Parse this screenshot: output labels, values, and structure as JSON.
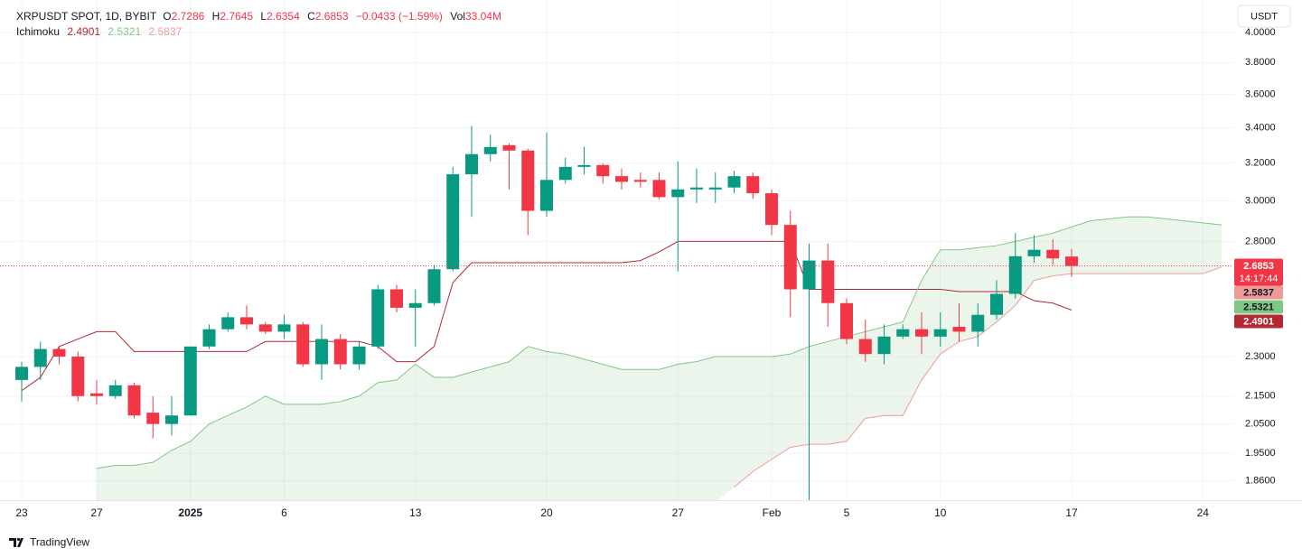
{
  "chart_data": {
    "type": "candlestick",
    "title": "XRPUSDT SPOT, 1D, BYBIT",
    "categories": [
      "23",
      null,
      null,
      null,
      "27",
      null,
      null,
      null,
      null,
      "2025",
      null,
      null,
      null,
      null,
      "6",
      null,
      null,
      null,
      null,
      null,
      null,
      "13",
      null,
      null,
      null,
      null,
      null,
      null,
      "20",
      null,
      null,
      null,
      null,
      null,
      null,
      "27",
      null,
      null,
      null,
      null,
      "Feb",
      null,
      null,
      null,
      "5",
      null,
      null,
      null,
      null,
      "10",
      null,
      null,
      null,
      null,
      null,
      null,
      "17",
      null,
      null,
      null,
      null,
      null,
      null,
      "24",
      null
    ],
    "open": [
      2.21,
      2.26,
      2.33,
      2.3,
      2.16,
      2.15,
      2.19,
      2.09,
      2.05,
      2.08,
      2.34,
      2.41,
      2.46,
      2.43,
      2.4,
      2.43,
      2.27,
      2.37,
      2.27,
      2.34,
      2.58,
      2.5,
      2.52,
      2.67,
      3.14,
      3.25,
      3.3,
      3.27,
      2.95,
      3.11,
      3.18,
      3.19,
      3.13,
      3.11,
      3.11,
      3.02,
      3.06,
      3.06,
      3.07,
      3.13,
      3.04,
      2.88,
      2.58,
      2.71,
      2.52,
      2.37,
      2.31,
      2.38,
      2.41,
      2.38,
      2.42,
      2.4,
      2.47,
      2.56,
      2.73,
      2.76,
      2.7286,
      null,
      null,
      null,
      null,
      null,
      null,
      null,
      null
    ],
    "high": [
      2.28,
      2.36,
      2.34,
      2.32,
      2.21,
      2.21,
      2.2,
      2.15,
      2.15,
      2.34,
      2.43,
      2.48,
      2.51,
      2.44,
      2.47,
      2.44,
      2.43,
      2.39,
      2.36,
      2.6,
      2.6,
      2.58,
      2.69,
      3.18,
      3.41,
      3.36,
      3.31,
      3.28,
      3.37,
      3.23,
      3.29,
      3.2,
      3.17,
      3.15,
      3.15,
      3.21,
      3.17,
      3.15,
      3.16,
      3.15,
      3.06,
      2.95,
      2.79,
      2.79,
      2.54,
      2.45,
      2.43,
      2.43,
      2.48,
      2.48,
      2.52,
      2.52,
      2.62,
      2.84,
      2.83,
      2.81,
      2.7645,
      null,
      null,
      null,
      null,
      null,
      null,
      null,
      null
    ],
    "low": [
      2.13,
      2.21,
      2.27,
      2.13,
      2.12,
      2.14,
      2.07,
      2.0,
      2.01,
      2.08,
      2.33,
      2.4,
      2.41,
      2.39,
      2.37,
      2.26,
      2.21,
      2.25,
      2.25,
      2.33,
      2.48,
      2.34,
      2.51,
      2.66,
      2.92,
      3.21,
      3.06,
      2.83,
      2.92,
      3.09,
      3.14,
      3.09,
      3.06,
      3.07,
      3.01,
      2.66,
      2.99,
      2.99,
      3.04,
      3.01,
      2.83,
      2.46,
      1.77,
      2.42,
      2.35,
      2.28,
      2.27,
      2.37,
      2.31,
      2.34,
      2.36,
      2.34,
      2.45,
      2.54,
      2.7,
      2.69,
      2.6354,
      null,
      null,
      null,
      null,
      null,
      null,
      null,
      null
    ],
    "close": [
      2.26,
      2.33,
      2.3,
      2.15,
      2.15,
      2.19,
      2.08,
      2.05,
      2.08,
      2.34,
      2.41,
      2.46,
      2.43,
      2.4,
      2.43,
      2.27,
      2.37,
      2.27,
      2.34,
      2.58,
      2.5,
      2.52,
      2.67,
      3.14,
      3.25,
      3.29,
      3.27,
      2.95,
      3.11,
      3.18,
      3.19,
      3.13,
      3.1,
      3.1,
      3.02,
      3.06,
      3.07,
      3.07,
      3.13,
      3.04,
      2.88,
      2.58,
      2.71,
      2.52,
      2.37,
      2.31,
      2.38,
      2.41,
      2.38,
      2.41,
      2.4,
      2.47,
      2.56,
      2.73,
      2.76,
      2.72,
      2.6853,
      null,
      null,
      null,
      null,
      null,
      null,
      null,
      null
    ],
    "up_color": "#089981",
    "down_color": "#f23645",
    "ohlc_labels": {
      "open": "O",
      "high": "H",
      "low": "L",
      "close": "C"
    },
    "change": "−0.0433 (−1.59%)",
    "volume_label": "Vol",
    "volume": "33.04M",
    "countdown": "14:17:44",
    "currency": "USDT",
    "watermark": "TradingView",
    "ylim": [
      1.8,
      4.05
    ],
    "log_scale": true,
    "grid": true,
    "yticks": [
      {
        "value": 4,
        "label": "4.0000"
      },
      {
        "value": 3.8,
        "label": "3.8000"
      },
      {
        "value": 3.6,
        "label": "3.6000"
      },
      {
        "value": 3.4,
        "label": "3.4000"
      },
      {
        "value": 3.2,
        "label": "3.2000"
      },
      {
        "value": 3,
        "label": "3.0000"
      },
      {
        "value": 2.8,
        "label": "2.8000"
      },
      {
        "value": 2.3,
        "label": "2.3000"
      },
      {
        "value": 2.15,
        "label": "2.1500"
      },
      {
        "value": 2.05,
        "label": "2.0500"
      },
      {
        "value": 1.95,
        "label": "1.9500"
      },
      {
        "value": 1.86,
        "label": "1.8600"
      }
    ],
    "indicator": {
      "name": "Ichimoku",
      "series": [
        {
          "color": "#b22833",
          "legend_value": 2.4901,
          "values": [
            2.17,
            2.22,
            2.34,
            2.37,
            2.4,
            2.4,
            2.32,
            2.32,
            2.32,
            2.32,
            2.32,
            2.32,
            2.32,
            2.36,
            2.36,
            2.36,
            2.36,
            2.36,
            2.36,
            2.34,
            2.28,
            2.28,
            2.34,
            2.61,
            2.7,
            2.7,
            2.7,
            2.7,
            2.7,
            2.7,
            2.7,
            2.7,
            2.7,
            2.71,
            2.75,
            2.8,
            2.8,
            2.8,
            2.8,
            2.8,
            2.8,
            2.8,
            2.58,
            2.58,
            2.58,
            2.58,
            2.58,
            2.58,
            2.58,
            2.58,
            2.57,
            2.57,
            2.57,
            2.57,
            2.53,
            2.52,
            2.4901,
            null,
            null,
            null,
            null,
            null,
            null,
            null,
            null
          ]
        },
        {
          "color": "#81c784",
          "legend_value": 2.5321,
          "values": [
            null,
            null,
            null,
            null,
            1.9,
            1.91,
            1.91,
            1.92,
            1.96,
            1.99,
            2.05,
            2.08,
            2.11,
            2.15,
            2.12,
            2.12,
            2.12,
            2.13,
            2.15,
            2.2,
            2.21,
            2.27,
            2.22,
            2.22,
            2.24,
            2.26,
            2.28,
            2.34,
            2.32,
            2.31,
            2.29,
            2.27,
            2.25,
            2.25,
            2.25,
            2.27,
            2.28,
            2.3,
            2.3,
            2.3,
            2.3,
            2.31,
            2.34,
            2.36,
            2.38,
            2.4,
            2.42,
            2.44,
            2.62,
            2.76,
            2.76,
            2.77,
            2.78,
            2.8,
            2.82,
            2.84,
            2.87,
            2.9,
            2.91,
            2.92,
            2.92,
            2.91,
            2.9,
            2.89,
            2.88
          ]
        },
        {
          "color": "#ef9a9a",
          "legend_value": 2.5837,
          "values": [
            null,
            null,
            null,
            null,
            null,
            null,
            null,
            null,
            null,
            null,
            null,
            null,
            null,
            null,
            null,
            null,
            null,
            null,
            null,
            null,
            null,
            null,
            null,
            null,
            null,
            null,
            null,
            null,
            null,
            null,
            null,
            null,
            null,
            null,
            null,
            null,
            null,
            null,
            1.84,
            1.89,
            1.93,
            1.97,
            1.98,
            1.98,
            1.99,
            2.07,
            2.08,
            2.08,
            2.21,
            2.31,
            2.36,
            2.38,
            2.44,
            2.51,
            2.62,
            2.64,
            2.65,
            2.65,
            2.65,
            2.65,
            2.65,
            2.65,
            2.65,
            2.65,
            2.68
          ]
        }
      ]
    }
  }
}
